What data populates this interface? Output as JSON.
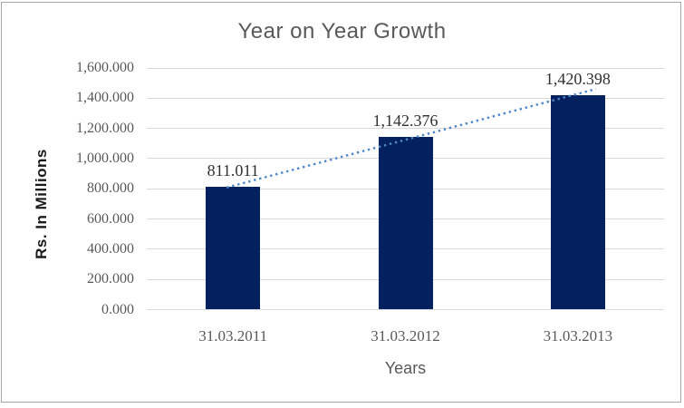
{
  "chart_data": {
    "type": "bar",
    "title": "Year on Year Growth",
    "xlabel": "Years",
    "ylabel": "Rs. In Millions",
    "categories": [
      "31.03.2011",
      "31.03.2012",
      "31.03.2013"
    ],
    "values": [
      811.011,
      1142.376,
      1420.398
    ],
    "value_labels": [
      "811.011",
      "1,142.376",
      "1,420.398"
    ],
    "ylim": [
      0,
      1600
    ],
    "ytick_step": 200,
    "ytick_labels": [
      "0.000",
      "200.000",
      "400.000",
      "600.000",
      "800.000",
      "1,000.000",
      "1,200.000",
      "1,400.000",
      "1,600.000"
    ],
    "grid": true,
    "legend": "none",
    "trendline": {
      "type": "linear",
      "style": "dotted"
    },
    "colors": {
      "bar": "#04215F",
      "trendline": "#4F86C6",
      "gridline": "#D9D9D9",
      "axis_text": "#595959",
      "data_label": "#303030",
      "frame_border": "#A6A6A6"
    }
  }
}
